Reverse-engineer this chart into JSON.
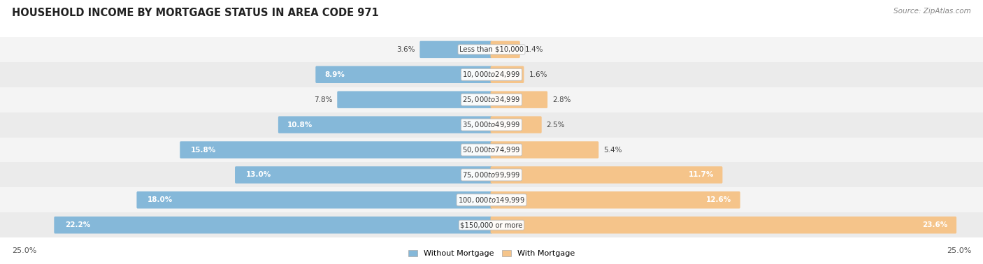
{
  "title": "HOUSEHOLD INCOME BY MORTGAGE STATUS IN AREA CODE 971",
  "source": "Source: ZipAtlas.com",
  "categories": [
    "Less than $10,000",
    "$10,000 to $24,999",
    "$25,000 to $34,999",
    "$35,000 to $49,999",
    "$50,000 to $74,999",
    "$75,000 to $99,999",
    "$100,000 to $149,999",
    "$150,000 or more"
  ],
  "without_mortgage": [
    3.6,
    8.9,
    7.8,
    10.8,
    15.8,
    13.0,
    18.0,
    22.2
  ],
  "with_mortgage": [
    1.4,
    1.6,
    2.8,
    2.5,
    5.4,
    11.7,
    12.6,
    23.6
  ],
  "color_without": "#85b8d9",
  "color_with": "#f5c48a",
  "axis_limit": 25.0,
  "legend_labels": [
    "Without Mortgage",
    "With Mortgage"
  ],
  "bottom_left_label": "25.0%",
  "bottom_right_label": "25.0%",
  "row_colors": [
    "#f4f4f4",
    "#ebebeb",
    "#f4f4f4",
    "#ebebeb",
    "#f4f4f4",
    "#ebebeb",
    "#f4f4f4",
    "#ebebeb"
  ]
}
